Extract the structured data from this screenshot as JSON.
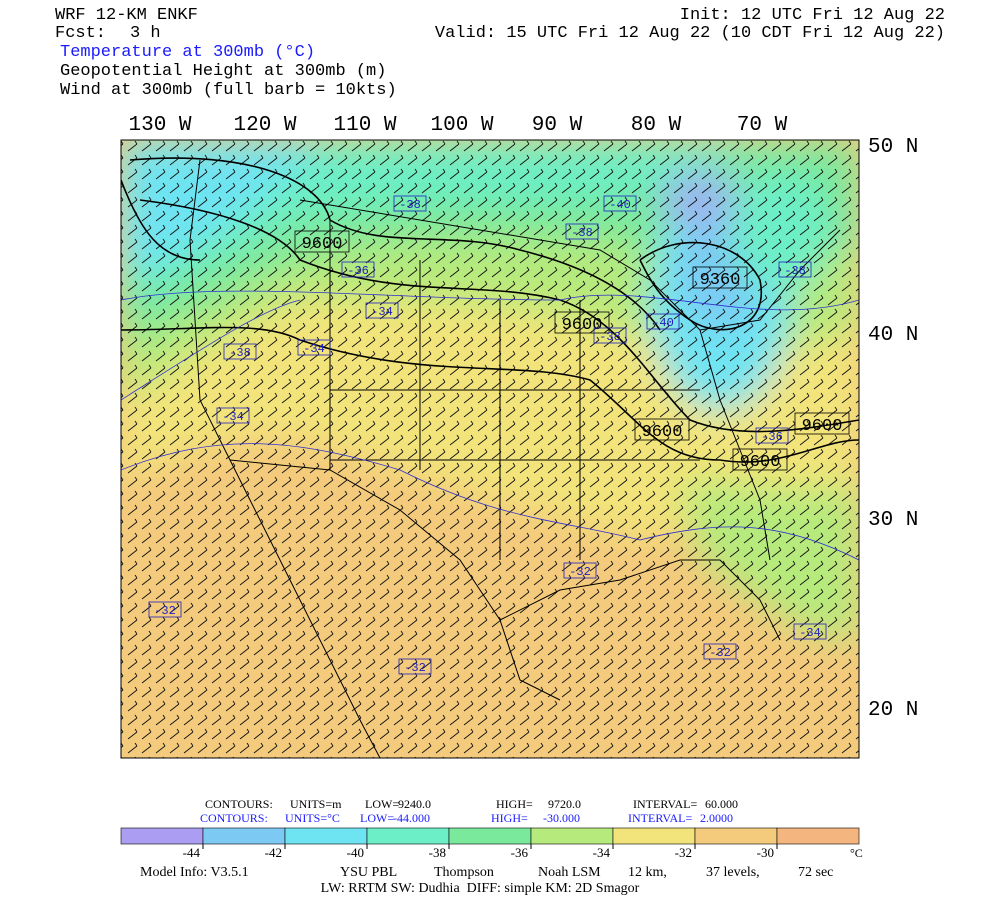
{
  "header": {
    "model": "WRF 12-KM ENKF",
    "fcst_label": "Fcst:",
    "fcst": "3 h",
    "init": "Init: 12 UTC Fri 12 Aug 22",
    "valid": "Valid: 15 UTC Fri 12 Aug 22 (10 CDT Fri 12 Aug 22)",
    "fields": [
      "Temperature at 300mb (°C)",
      "Geopotential Height at 300mb (m)",
      "Wind at 300mb (full barb = 10kts)"
    ]
  },
  "map": {
    "lon_labels": [
      "130 W",
      "120 W",
      "110 W",
      "100 W",
      "90 W",
      "80 W",
      "70 W"
    ],
    "lat_labels": [
      "50 N",
      "40 N",
      "30 N",
      "20 N"
    ],
    "height_labels": [
      "9600",
      "9360",
      "9600",
      "9600",
      "9600",
      "9600"
    ],
    "temp_labels": [
      "-38",
      "-40",
      "-38",
      "-36",
      "-34",
      "-34",
      "-38",
      "-34",
      "-38",
      "-40",
      "-38",
      "-36",
      "-32",
      "-32",
      "-32",
      "-32",
      "-34"
    ]
  },
  "contour_info": {
    "height": [
      "CONTOURS:",
      "UNITS=m",
      "LOW=",
      "9240.0",
      "HIGH=",
      "9720.0",
      "INTERVAL=",
      "60.000"
    ],
    "temp": [
      "CONTOURS:",
      "UNITS=°C",
      "LOW=",
      "-44.000",
      "HIGH=",
      "-30.000",
      "INTERVAL=",
      "2.0000"
    ]
  },
  "colorbar": {
    "levels": [
      -44,
      -42,
      -40,
      -38,
      -36,
      -34,
      -32,
      -30
    ],
    "unit": "°C",
    "colors": [
      "#ab9ef2",
      "#7ccaf4",
      "#6ee4f2",
      "#6cefc6",
      "#7ae99c",
      "#b6ea7c",
      "#f2e47a",
      "#f4ca7c",
      "#f4b67e"
    ]
  },
  "footer": {
    "line1": [
      "Model Info: V3.5.1",
      "YSU PBL",
      "Thompson",
      "Noah LSM",
      "12 km,",
      "37 levels,",
      "72 sec"
    ],
    "line2": "LW: RRTM SW: Dudhia  DIFF: simple KM: 2D Smagor"
  }
}
